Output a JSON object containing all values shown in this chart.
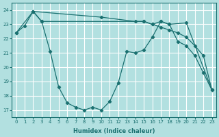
{
  "xlabel": "Humidex (Indice chaleur)",
  "bg_color": "#b2e0e0",
  "grid_color": "#ffffff",
  "line_color": "#1a7070",
  "xlim": [
    -0.5,
    23.5
  ],
  "ylim": [
    16.5,
    24.5
  ],
  "yticks": [
    17,
    18,
    19,
    20,
    21,
    22,
    23,
    24
  ],
  "xticks": [
    0,
    1,
    2,
    3,
    4,
    5,
    6,
    7,
    8,
    9,
    10,
    11,
    12,
    13,
    14,
    15,
    16,
    17,
    18,
    19,
    20,
    21,
    22,
    23
  ],
  "line1": {
    "x": [
      0,
      1,
      2,
      3,
      4,
      5,
      6,
      7,
      8,
      9,
      10,
      11,
      12,
      13,
      14,
      15,
      16,
      17,
      18,
      19,
      20,
      21,
      22,
      23
    ],
    "y": [
      22.4,
      22.9,
      23.9,
      23.2,
      21.1,
      18.6,
      17.5,
      17.2,
      17.0,
      17.2,
      17.0,
      17.6,
      18.9,
      21.1,
      21.0,
      21.2,
      22.1,
      23.2,
      23.0,
      21.8,
      21.5,
      20.8,
      19.6,
      18.4
    ]
  },
  "line2": {
    "x": [
      0,
      2,
      10,
      14,
      15,
      16,
      17,
      18,
      19,
      20,
      21,
      22,
      23
    ],
    "y": [
      22.4,
      23.9,
      23.5,
      23.2,
      23.2,
      23.0,
      22.8,
      22.6,
      22.4,
      22.1,
      21.5,
      20.8,
      18.4
    ]
  },
  "line3": {
    "x": [
      2,
      3,
      15,
      16,
      17,
      18,
      20,
      23
    ],
    "y": [
      23.9,
      23.2,
      23.2,
      23.0,
      23.2,
      23.0,
      23.1,
      18.4
    ]
  }
}
